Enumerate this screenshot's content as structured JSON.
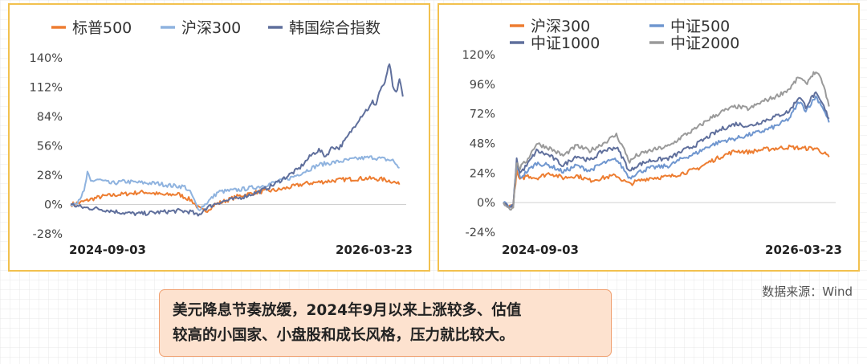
{
  "footer": {
    "source": "数据来源：Wind",
    "caption_line1": "美元降息节奏放缓，2024年9月以来上涨较多、估值",
    "caption_line2": "较高的小国家、小盘股和成长风格，压力就比较大。"
  },
  "colors": {
    "orange": "#ed7d31",
    "light_blue": "#8fb3df",
    "navy": "#5f6f9c",
    "mid_blue": "#6f96cf",
    "gray": "#9a9a9a",
    "border": "#f2c14e"
  },
  "chart_data": [
    {
      "type": "line",
      "x_start": "2024-09-03",
      "x_end": "2026-03-23",
      "x_ticks": [
        "2024-09-03",
        "2026-03-23"
      ],
      "y_ticks": [
        "140%",
        "112%",
        "84%",
        "56%",
        "28%",
        "0%",
        "-28%"
      ],
      "ylim": [
        -28,
        140
      ],
      "legend": "top",
      "series": [
        {
          "name": "标普500",
          "color": "#ed7d31",
          "points": [
            [
              0,
              0
            ],
            [
              3,
              2
            ],
            [
              6,
              5
            ],
            [
              10,
              8
            ],
            [
              16,
              10
            ],
            [
              22,
              12
            ],
            [
              28,
              9
            ],
            [
              32,
              10
            ],
            [
              36,
              4
            ],
            [
              38,
              -3
            ],
            [
              40,
              -7
            ],
            [
              43,
              0
            ],
            [
              50,
              8
            ],
            [
              56,
              12
            ],
            [
              62,
              14
            ],
            [
              66,
              17
            ],
            [
              70,
              20
            ],
            [
              76,
              22
            ],
            [
              82,
              24
            ],
            [
              88,
              25
            ],
            [
              93,
              24
            ],
            [
              96,
              22
            ],
            [
              98,
              19
            ]
          ]
        },
        {
          "name": "沪深300",
          "color": "#8fb3df",
          "points": [
            [
              0,
              0
            ],
            [
              2,
              3
            ],
            [
              4,
              12
            ],
            [
              5,
              30
            ],
            [
              6,
              22
            ],
            [
              8,
              24
            ],
            [
              12,
              20
            ],
            [
              16,
              22
            ],
            [
              20,
              21
            ],
            [
              26,
              20
            ],
            [
              30,
              18
            ],
            [
              34,
              17
            ],
            [
              36,
              10
            ],
            [
              38,
              -5
            ],
            [
              40,
              0
            ],
            [
              44,
              12
            ],
            [
              50,
              14
            ],
            [
              56,
              17
            ],
            [
              62,
              22
            ],
            [
              66,
              26
            ],
            [
              70,
              32
            ],
            [
              74,
              38
            ],
            [
              78,
              40
            ],
            [
              82,
              42
            ],
            [
              86,
              44
            ],
            [
              90,
              45
            ],
            [
              94,
              43
            ],
            [
              96,
              42
            ],
            [
              98,
              35
            ]
          ]
        },
        {
          "name": "韩国综合指数",
          "color": "#5f6f9c",
          "points": [
            [
              0,
              0
            ],
            [
              4,
              -3
            ],
            [
              8,
              -4
            ],
            [
              12,
              -6
            ],
            [
              16,
              -8
            ],
            [
              20,
              -9
            ],
            [
              24,
              -8
            ],
            [
              28,
              -7
            ],
            [
              32,
              -6
            ],
            [
              36,
              -7
            ],
            [
              38,
              -11
            ],
            [
              40,
              -4
            ],
            [
              44,
              2
            ],
            [
              50,
              6
            ],
            [
              56,
              12
            ],
            [
              60,
              18
            ],
            [
              64,
              26
            ],
            [
              68,
              34
            ],
            [
              72,
              48
            ],
            [
              74,
              52
            ],
            [
              76,
              46
            ],
            [
              78,
              55
            ],
            [
              80,
              54
            ],
            [
              82,
              62
            ],
            [
              84,
              72
            ],
            [
              86,
              82
            ],
            [
              88,
              90
            ],
            [
              89,
              92
            ],
            [
              90,
              98
            ],
            [
              91,
              95
            ],
            [
              92,
              108
            ],
            [
              93,
              112
            ],
            [
              94,
              120
            ],
            [
              95,
              135
            ],
            [
              96,
              112
            ],
            [
              97,
              106
            ],
            [
              98,
              120
            ],
            [
              99,
              103
            ]
          ]
        }
      ]
    },
    {
      "type": "line",
      "x_start": "2024-09-03",
      "x_end": "2026-03-23",
      "x_ticks": [
        "2024-09-03",
        "2026-03-23"
      ],
      "y_ticks": [
        "120%",
        "96%",
        "72%",
        "48%",
        "24%",
        "0%",
        "-24%"
      ],
      "ylim": [
        -24,
        120
      ],
      "legend": "top",
      "series": [
        {
          "name": "沪深300",
          "color": "#ed7d31",
          "points": [
            [
              0,
              0
            ],
            [
              2,
              -3
            ],
            [
              3,
              -1
            ],
            [
              4,
              25
            ],
            [
              5,
              18
            ],
            [
              7,
              22
            ],
            [
              10,
              20
            ],
            [
              14,
              24
            ],
            [
              18,
              20
            ],
            [
              22,
              22
            ],
            [
              26,
              18
            ],
            [
              30,
              20
            ],
            [
              34,
              22
            ],
            [
              36,
              18
            ],
            [
              38,
              15
            ],
            [
              40,
              17
            ],
            [
              44,
              20
            ],
            [
              50,
              21
            ],
            [
              54,
              24
            ],
            [
              58,
              27
            ],
            [
              62,
              33
            ],
            [
              66,
              38
            ],
            [
              70,
              42
            ],
            [
              74,
              41
            ],
            [
              78,
              43
            ],
            [
              82,
              44
            ],
            [
              86,
              45
            ],
            [
              90,
              44
            ],
            [
              94,
              44
            ],
            [
              96,
              41
            ],
            [
              98,
              37
            ]
          ]
        },
        {
          "name": "中证500",
          "color": "#6f96cf",
          "points": [
            [
              0,
              0
            ],
            [
              2,
              -4
            ],
            [
              3,
              -2
            ],
            [
              4,
              33
            ],
            [
              5,
              20
            ],
            [
              7,
              25
            ],
            [
              10,
              32
            ],
            [
              14,
              30
            ],
            [
              18,
              25
            ],
            [
              22,
              30
            ],
            [
              26,
              26
            ],
            [
              30,
              32
            ],
            [
              34,
              35
            ],
            [
              36,
              28
            ],
            [
              38,
              20
            ],
            [
              40,
              24
            ],
            [
              44,
              28
            ],
            [
              50,
              30
            ],
            [
              54,
              36
            ],
            [
              58,
              40
            ],
            [
              62,
              46
            ],
            [
              66,
              50
            ],
            [
              70,
              52
            ],
            [
              74,
              55
            ],
            [
              78,
              58
            ],
            [
              82,
              62
            ],
            [
              86,
              68
            ],
            [
              89,
              82
            ],
            [
              91,
              75
            ],
            [
              93,
              82
            ],
            [
              94,
              86
            ],
            [
              96,
              78
            ],
            [
              98,
              65
            ]
          ]
        },
        {
          "name": "中证1000",
          "color": "#5f6f9c",
          "points": [
            [
              0,
              0
            ],
            [
              2,
              -5
            ],
            [
              3,
              -2
            ],
            [
              4,
              35
            ],
            [
              5,
              24
            ],
            [
              7,
              30
            ],
            [
              10,
              42
            ],
            [
              14,
              38
            ],
            [
              18,
              30
            ],
            [
              22,
              38
            ],
            [
              26,
              34
            ],
            [
              30,
              42
            ],
            [
              34,
              45
            ],
            [
              36,
              36
            ],
            [
              38,
              25
            ],
            [
              40,
              30
            ],
            [
              44,
              34
            ],
            [
              50,
              36
            ],
            [
              54,
              42
            ],
            [
              58,
              47
            ],
            [
              62,
              54
            ],
            [
              66,
              60
            ],
            [
              70,
              64
            ],
            [
              74,
              62
            ],
            [
              78,
              66
            ],
            [
              82,
              70
            ],
            [
              86,
              74
            ],
            [
              89,
              86
            ],
            [
              91,
              78
            ],
            [
              93,
              86
            ],
            [
              94,
              88
            ],
            [
              96,
              80
            ],
            [
              98,
              68
            ]
          ]
        },
        {
          "name": "中证2000",
          "color": "#9a9a9a",
          "points": [
            [
              0,
              0
            ],
            [
              2,
              -5
            ],
            [
              3,
              -3
            ],
            [
              4,
              32
            ],
            [
              5,
              28
            ],
            [
              7,
              34
            ],
            [
              10,
              48
            ],
            [
              14,
              44
            ],
            [
              18,
              38
            ],
            [
              22,
              46
            ],
            [
              26,
              42
            ],
            [
              30,
              48
            ],
            [
              34,
              55
            ],
            [
              36,
              45
            ],
            [
              38,
              33
            ],
            [
              40,
              38
            ],
            [
              44,
              42
            ],
            [
              50,
              46
            ],
            [
              54,
              54
            ],
            [
              58,
              60
            ],
            [
              62,
              68
            ],
            [
              66,
              74
            ],
            [
              70,
              78
            ],
            [
              74,
              76
            ],
            [
              78,
              82
            ],
            [
              82,
              86
            ],
            [
              86,
              92
            ],
            [
              89,
              102
            ],
            [
              91,
              96
            ],
            [
              93,
              104
            ],
            [
              94,
              106
            ],
            [
              96,
              98
            ],
            [
              98,
              78
            ]
          ]
        }
      ]
    }
  ]
}
